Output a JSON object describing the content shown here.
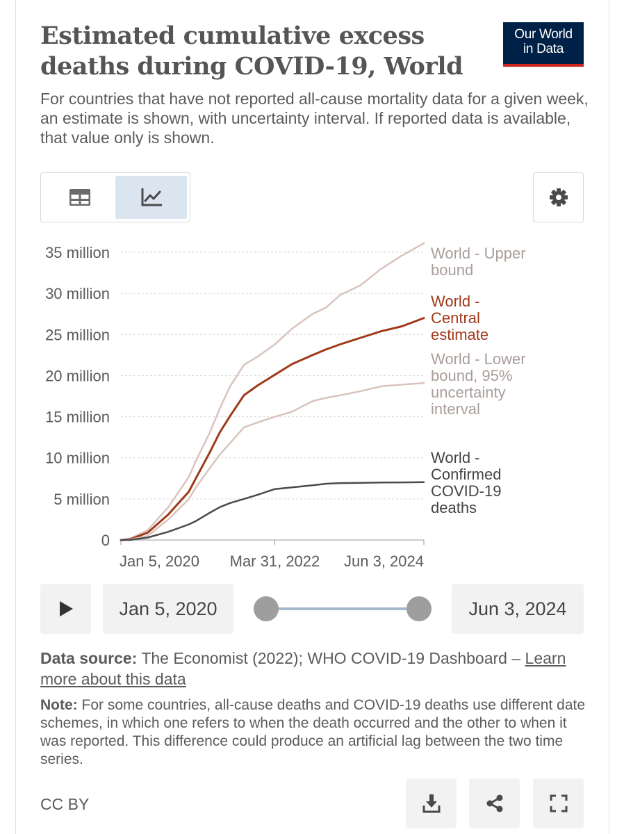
{
  "header": {
    "title": "Estimated cumulative excess deaths during COVID-19, World",
    "logo_line1": "Our World",
    "logo_line2": "in Data",
    "subtitle": "For countries that have not reported all-cause mortality data for a given week, an estimate is shown, with uncertainty interval. If reported data is available, that value only is shown."
  },
  "toolbar": {
    "table_tab_icon": "table-icon",
    "chart_tab_icon": "line-chart-icon",
    "settings_icon": "gear-icon"
  },
  "colors": {
    "upper": "#d9c3bd",
    "central": "#a0391a",
    "lower": "#d9c3bd",
    "confirmed": "#4a4a4a",
    "label_bound": "#a99e9a",
    "label_central": "#a0391a",
    "label_confirmed": "#444444",
    "logo_bg": "#002147",
    "logo_accent": "#ce261e"
  },
  "chart_data": {
    "type": "line",
    "title": "Estimated cumulative excess deaths during COVID-19, World",
    "xlabel": "",
    "ylabel": "",
    "ylim": [
      0,
      35000000
    ],
    "y_ticks": [
      0,
      5000000,
      10000000,
      15000000,
      20000000,
      25000000,
      30000000,
      35000000
    ],
    "y_tick_labels": [
      "0",
      "5 million",
      "10 million",
      "15 million",
      "20 million",
      "25 million",
      "30 million",
      "35 million"
    ],
    "x_range": [
      2020.01,
      2024.42
    ],
    "x_ticks": [
      2020.01,
      2022.25,
      2024.42
    ],
    "x_tick_labels": [
      "Jan 5, 2020",
      "Mar 31, 2022",
      "Jun 3, 2024"
    ],
    "grid": true,
    "legend": "right-inline",
    "series": [
      {
        "name": "World - Upper bound",
        "label_lines": [
          "World - Upper",
          "bound"
        ],
        "key": "upper",
        "x": [
          2020.01,
          2020.15,
          2020.4,
          2020.7,
          2021.0,
          2021.1,
          2021.3,
          2021.45,
          2021.6,
          2021.8,
          2022.0,
          2022.25,
          2022.5,
          2022.8,
          2023.0,
          2023.2,
          2023.5,
          2023.8,
          2024.1,
          2024.42
        ],
        "y": [
          0,
          200000,
          1200000,
          4000000,
          7700000,
          9600000,
          13000000,
          16000000,
          18700000,
          21300000,
          22300000,
          23800000,
          25700000,
          27500000,
          28300000,
          29800000,
          31000000,
          33000000,
          34600000,
          36100000
        ]
      },
      {
        "name": "World - Central estimate",
        "label_lines": [
          "World -",
          "Central",
          "estimate"
        ],
        "key": "central",
        "x": [
          2020.01,
          2020.15,
          2020.4,
          2020.7,
          2021.0,
          2021.1,
          2021.3,
          2021.45,
          2021.6,
          2021.8,
          2022.0,
          2022.25,
          2022.5,
          2022.8,
          2023.0,
          2023.2,
          2023.5,
          2023.8,
          2024.1,
          2024.42
        ],
        "y": [
          0,
          100000,
          900000,
          3100000,
          5900000,
          7500000,
          10600000,
          13100000,
          15100000,
          17600000,
          18800000,
          20100000,
          21400000,
          22500000,
          23200000,
          23800000,
          24600000,
          25400000,
          26000000,
          27000000
        ]
      },
      {
        "name": "World - Lower bound, 95% uncertainty interval",
        "label_lines": [
          "World - Lower",
          "bound, 95%",
          "uncertainty",
          "interval"
        ],
        "key": "lower",
        "x": [
          2020.01,
          2020.15,
          2020.4,
          2020.7,
          2021.0,
          2021.1,
          2021.3,
          2021.45,
          2021.6,
          2021.8,
          2022.0,
          2022.25,
          2022.5,
          2022.8,
          2023.0,
          2023.2,
          2023.5,
          2023.8,
          2024.1,
          2024.42
        ],
        "y": [
          0,
          50000,
          500000,
          2500000,
          5000000,
          6400000,
          8700000,
          10400000,
          11800000,
          13700000,
          14300000,
          15000000,
          15600000,
          16900000,
          17300000,
          17600000,
          18100000,
          18700000,
          18900000,
          19100000
        ]
      },
      {
        "name": "World - Confirmed COVID-19 deaths",
        "label_lines": [
          "World -",
          "Confirmed",
          "COVID-19",
          "deaths"
        ],
        "key": "confirmed",
        "x": [
          2020.01,
          2020.15,
          2020.4,
          2020.7,
          2021.0,
          2021.1,
          2021.3,
          2021.45,
          2021.6,
          2021.8,
          2022.0,
          2022.25,
          2022.5,
          2022.8,
          2023.0,
          2023.2,
          2023.5,
          2023.8,
          2024.1,
          2024.42
        ],
        "y": [
          0,
          10000,
          300000,
          1000000,
          1900000,
          2300000,
          3300000,
          4000000,
          4500000,
          5000000,
          5500000,
          6200000,
          6400000,
          6650000,
          6850000,
          6920000,
          6960000,
          6990000,
          7010000,
          7030000
        ]
      }
    ]
  },
  "timeline": {
    "play_icon": "play-icon",
    "start_date": "Jan 5, 2020",
    "end_date": "Jun 3, 2024",
    "start_position": 0,
    "end_position": 1
  },
  "footer": {
    "source_label": "Data source:",
    "source_text": "The Economist (2022); WHO COVID-19 Dashboard –",
    "source_link": "Learn more about this data",
    "note_label": "Note:",
    "note_text": "For some countries, all-cause deaths and COVID-19 deaths use different date schemes, in which one refers to when the death occurred and the other to when it was reported. This difference could produce an artificial lag between the two time series.",
    "license": "CC BY",
    "download_icon": "download-icon",
    "share_icon": "share-icon",
    "fullscreen_icon": "fullscreen-icon"
  }
}
